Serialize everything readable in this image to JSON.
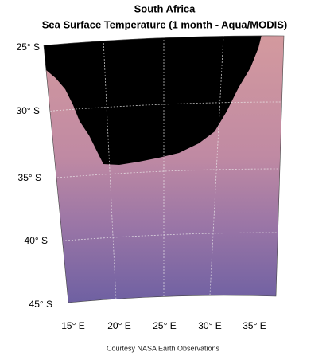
{
  "header": {
    "title": "South Africa",
    "subtitle": "Sea Surface Temperature (1 month - Aqua/MODIS)"
  },
  "map": {
    "lat_labels": [
      "25° S",
      "30° S",
      "35° S",
      "40° S",
      "45° S"
    ],
    "lon_labels": [
      "15° E",
      "20° E",
      "25° E",
      "30° E",
      "35° E"
    ]
  },
  "credit": "Courtesy NASA Earth Observations"
}
